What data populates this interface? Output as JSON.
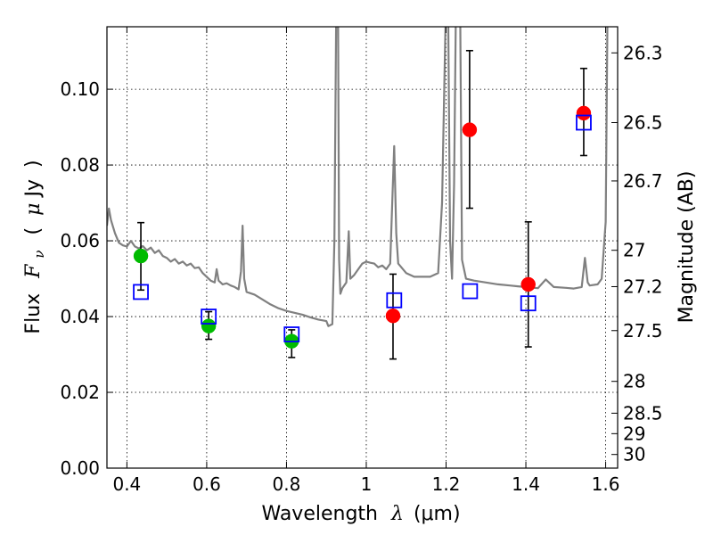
{
  "chart_data": {
    "type": "scatter",
    "xlabel": "Wavelength  λ (μm)",
    "xlabel_parts": {
      "word": "Wavelength",
      "symbol": "λ",
      "unit": "(μm)"
    },
    "ylabel": "Flux  Fν  ( μJy )",
    "ylabel_parts": {
      "word": "Flux",
      "symbol": "F",
      "sub": "ν",
      "unit_open": "(",
      "mu": "μ",
      "unit": "Jy",
      "unit_close": ")"
    },
    "y2label": "Magnitude (AB)",
    "xlim": [
      0.35,
      1.63
    ],
    "ylim": [
      0.0,
      0.1165
    ],
    "grid": true,
    "x_ticks": [
      {
        "value": 0.4,
        "label": "0.4"
      },
      {
        "value": 0.6,
        "label": "0.6"
      },
      {
        "value": 0.8,
        "label": "0.8"
      },
      {
        "value": 1.0,
        "label": "1"
      },
      {
        "value": 1.2,
        "label": "1.2"
      },
      {
        "value": 1.4,
        "label": "1.4"
      },
      {
        "value": 1.6,
        "label": "1.6"
      }
    ],
    "y_ticks": [
      {
        "value": 0.0,
        "label": "0.00"
      },
      {
        "value": 0.02,
        "label": "0.02"
      },
      {
        "value": 0.04,
        "label": "0.04"
      },
      {
        "value": 0.06,
        "label": "0.06"
      },
      {
        "value": 0.08,
        "label": "0.08"
      },
      {
        "value": 0.1,
        "label": "0.10"
      }
    ],
    "y2_ticks": [
      {
        "flux": 0.1096,
        "label": "26.3"
      },
      {
        "flux": 0.0912,
        "label": "26.5"
      },
      {
        "flux": 0.0758,
        "label": "26.7"
      },
      {
        "flux": 0.0575,
        "label": "27"
      },
      {
        "flux": 0.0479,
        "label": "27.2"
      },
      {
        "flux": 0.0363,
        "label": "27.5"
      },
      {
        "flux": 0.0229,
        "label": "28"
      },
      {
        "flux": 0.0145,
        "label": "28.5"
      },
      {
        "flux": 0.0091,
        "label": "29"
      },
      {
        "flux": 0.0036,
        "label": "30"
      }
    ],
    "colors": {
      "template": "#808080",
      "optical": "#00bb00",
      "infrared": "#ff0000",
      "model": "#0000ff",
      "errorbar": "#000000"
    },
    "template_spectrum": [
      [
        0.35,
        0.064
      ],
      [
        0.355,
        0.0685
      ],
      [
        0.36,
        0.0655
      ],
      [
        0.37,
        0.062
      ],
      [
        0.38,
        0.0595
      ],
      [
        0.39,
        0.0588
      ],
      [
        0.4,
        0.0585
      ],
      [
        0.41,
        0.06
      ],
      [
        0.42,
        0.0585
      ],
      [
        0.43,
        0.058
      ],
      [
        0.44,
        0.0586
      ],
      [
        0.45,
        0.0575
      ],
      [
        0.46,
        0.0582
      ],
      [
        0.47,
        0.0568
      ],
      [
        0.48,
        0.0575
      ],
      [
        0.49,
        0.056
      ],
      [
        0.5,
        0.0555
      ],
      [
        0.51,
        0.0545
      ],
      [
        0.52,
        0.0552
      ],
      [
        0.53,
        0.054
      ],
      [
        0.54,
        0.0545
      ],
      [
        0.55,
        0.0535
      ],
      [
        0.56,
        0.054
      ],
      [
        0.57,
        0.0528
      ],
      [
        0.58,
        0.053
      ],
      [
        0.59,
        0.0515
      ],
      [
        0.6,
        0.0505
      ],
      [
        0.61,
        0.0495
      ],
      [
        0.62,
        0.049
      ],
      [
        0.625,
        0.0525
      ],
      [
        0.63,
        0.0495
      ],
      [
        0.64,
        0.0485
      ],
      [
        0.65,
        0.0488
      ],
      [
        0.66,
        0.0482
      ],
      [
        0.67,
        0.0478
      ],
      [
        0.68,
        0.0472
      ],
      [
        0.686,
        0.052
      ],
      [
        0.69,
        0.064
      ],
      [
        0.694,
        0.05
      ],
      [
        0.7,
        0.0465
      ],
      [
        0.72,
        0.0458
      ],
      [
        0.74,
        0.0445
      ],
      [
        0.76,
        0.0432
      ],
      [
        0.78,
        0.0422
      ],
      [
        0.8,
        0.0415
      ],
      [
        0.82,
        0.041
      ],
      [
        0.84,
        0.0405
      ],
      [
        0.86,
        0.0398
      ],
      [
        0.88,
        0.0392
      ],
      [
        0.9,
        0.0388
      ],
      [
        0.905,
        0.0375
      ],
      [
        0.915,
        0.038
      ],
      [
        0.92,
        0.06
      ],
      [
        0.925,
        0.125
      ],
      [
        0.929,
        0.125
      ],
      [
        0.932,
        0.055
      ],
      [
        0.935,
        0.046
      ],
      [
        0.94,
        0.0475
      ],
      [
        0.95,
        0.049
      ],
      [
        0.956,
        0.0625
      ],
      [
        0.96,
        0.05
      ],
      [
        0.97,
        0.051
      ],
      [
        0.98,
        0.0525
      ],
      [
        0.99,
        0.054
      ],
      [
        1.0,
        0.0545
      ],
      [
        1.01,
        0.0542
      ],
      [
        1.02,
        0.054
      ],
      [
        1.03,
        0.053
      ],
      [
        1.04,
        0.0535
      ],
      [
        1.05,
        0.0525
      ],
      [
        1.06,
        0.054
      ],
      [
        1.065,
        0.07
      ],
      [
        1.07,
        0.085
      ],
      [
        1.075,
        0.062
      ],
      [
        1.08,
        0.054
      ],
      [
        1.1,
        0.0515
      ],
      [
        1.12,
        0.0505
      ],
      [
        1.14,
        0.0505
      ],
      [
        1.16,
        0.0505
      ],
      [
        1.18,
        0.0515
      ],
      [
        1.19,
        0.07
      ],
      [
        1.2,
        0.125
      ],
      [
        1.205,
        0.125
      ],
      [
        1.21,
        0.06
      ],
      [
        1.215,
        0.05
      ],
      [
        1.22,
        0.075
      ],
      [
        1.225,
        0.125
      ],
      [
        1.235,
        0.125
      ],
      [
        1.24,
        0.055
      ],
      [
        1.25,
        0.05
      ],
      [
        1.27,
        0.0495
      ],
      [
        1.3,
        0.049
      ],
      [
        1.33,
        0.0485
      ],
      [
        1.36,
        0.0482
      ],
      [
        1.38,
        0.048
      ],
      [
        1.4,
        0.0478
      ],
      [
        1.43,
        0.0475
      ],
      [
        1.45,
        0.0498
      ],
      [
        1.47,
        0.0478
      ],
      [
        1.5,
        0.0476
      ],
      [
        1.52,
        0.0474
      ],
      [
        1.54,
        0.0478
      ],
      [
        1.548,
        0.0555
      ],
      [
        1.555,
        0.049
      ],
      [
        1.56,
        0.0482
      ],
      [
        1.58,
        0.0485
      ],
      [
        1.59,
        0.05
      ],
      [
        1.6,
        0.065
      ],
      [
        1.605,
        0.125
      ]
    ],
    "series": [
      {
        "marker": "circle",
        "color": "#00bb00",
        "x": [
          0.435,
          0.605,
          0.813
        ],
        "y": [
          0.056,
          0.0375,
          0.0335
        ],
        "yerr_low": [
          0.047,
          0.034,
          0.0292
        ],
        "yerr_high": [
          0.0648,
          0.0413,
          0.0365
        ]
      },
      {
        "marker": "circle",
        "color": "#ff0000",
        "x": [
          1.067,
          1.259,
          1.406,
          1.545
        ],
        "y": [
          0.0402,
          0.0893,
          0.0485,
          0.0937
        ],
        "yerr_low": [
          0.0288,
          0.0686,
          0.032,
          0.0825
        ],
        "yerr_high": [
          0.0512,
          0.1102,
          0.065,
          0.1055
        ]
      },
      {
        "marker": "square",
        "color": "#0000ff",
        "x": [
          0.435,
          0.605,
          0.813,
          1.07,
          1.26,
          1.406,
          1.545
        ],
        "y": [
          0.0465,
          0.04,
          0.0353,
          0.0443,
          0.0467,
          0.0435,
          0.0912
        ]
      }
    ]
  }
}
